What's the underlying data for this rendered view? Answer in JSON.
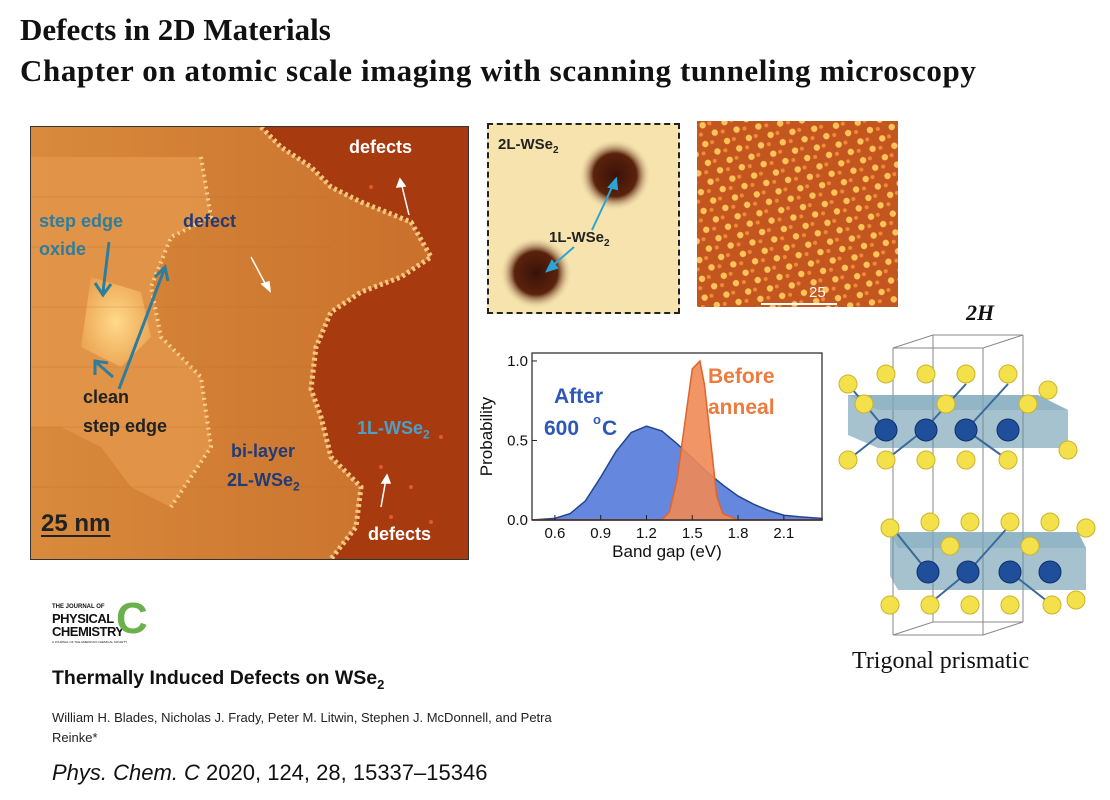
{
  "heading": {
    "line1": "Defects in 2D Materials",
    "line2": "Chapter on atomic scale imaging with scanning tunneling microscopy"
  },
  "stm_main": {
    "defects_top": "defects",
    "step_edge_oxide_1": "step edge",
    "step_edge_oxide_2": "oxide",
    "defect": "defect",
    "clean_1": "clean",
    "clean_2": "step edge",
    "bilayer_1": "bi-layer",
    "bilayer_2": "2L-WSe",
    "bilayer_sub": "2",
    "monolayer": "1L-WSe",
    "monolayer_sub": "2",
    "defects_bottom": "defects",
    "scale_bar": "25 nm"
  },
  "stm_inset": {
    "label_2l": "2L-WSe",
    "label_2l_sub": "2",
    "label_1l": "1L-WSe",
    "label_1l_sub": "2"
  },
  "stm_lattice": {
    "scale_label": "25"
  },
  "chart_data": {
    "type": "area",
    "xlabel": "Band gap (eV)",
    "ylabel": "Probability",
    "xlim": [
      0.45,
      2.35
    ],
    "ylim": [
      0.0,
      1.05
    ],
    "x_ticks": [
      "0.6",
      "0.9",
      "1.2",
      "1.5",
      "1.8",
      "2.1"
    ],
    "y_ticks": [
      "0.0",
      "0.5",
      "1.0"
    ],
    "series": [
      {
        "name": "After 600 oC",
        "color": "#4a73d8",
        "x": [
          0.45,
          0.6,
          0.7,
          0.8,
          0.9,
          1.0,
          1.1,
          1.2,
          1.3,
          1.4,
          1.5,
          1.6,
          1.7,
          1.8,
          1.9,
          2.0,
          2.1,
          2.2,
          2.35
        ],
        "values": [
          0.0,
          0.01,
          0.04,
          0.12,
          0.27,
          0.43,
          0.55,
          0.59,
          0.56,
          0.48,
          0.39,
          0.3,
          0.22,
          0.15,
          0.1,
          0.06,
          0.03,
          0.02,
          0.01
        ]
      },
      {
        "name": "Before anneal",
        "color": "#f08a55",
        "x": [
          0.45,
          1.3,
          1.35,
          1.4,
          1.45,
          1.5,
          1.55,
          1.58,
          1.62,
          1.66,
          1.7,
          1.8,
          2.35
        ],
        "values": [
          0.0,
          0.0,
          0.05,
          0.25,
          0.6,
          0.95,
          1.0,
          0.85,
          0.5,
          0.15,
          0.04,
          0.0,
          0.0
        ]
      }
    ],
    "annotations": {
      "after_1": "After",
      "after_2": "600 ",
      "after_sup": "o",
      "after_unit": "C",
      "before_1": "Before",
      "before_2": "anneal"
    }
  },
  "crystal": {
    "title": "2H",
    "caption": "Trigonal prismatic"
  },
  "journal": {
    "logo_line1": "THE JOURNAL OF",
    "logo_line2": "PHYSICAL",
    "logo_line3": "CHEMISTRY",
    "logo_letter": "C",
    "logo_tagline": "A JOURNAL OF THE AMERICAN CHEMICAL SOCIETY"
  },
  "paper": {
    "title": "Thermally Induced Defects on WSe",
    "title_sub": "2",
    "authors": "William H. Blades, Nicholas J. Frady, Peter M. Litwin, Stephen J. McDonnell, and Petra Reinke*",
    "citation_journal": "Phys. Chem. C",
    "citation_rest": " 2020, 124, 28, 15337–15346"
  }
}
